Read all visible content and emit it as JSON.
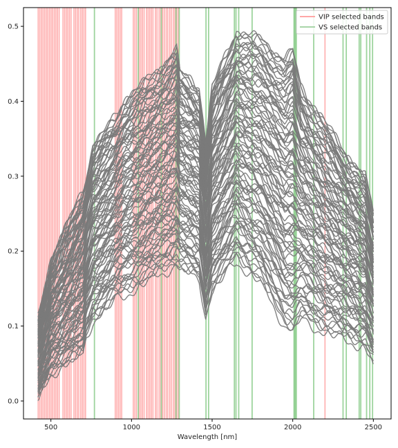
{
  "chart_data": {
    "type": "line",
    "title": "",
    "xlabel": "Wavelength [nm]",
    "ylabel": "",
    "xlim": [
      330,
      2610
    ],
    "ylim": [
      -0.024,
      0.525
    ],
    "xticks": [
      500,
      1000,
      1500,
      2000,
      2500
    ],
    "yticks": [
      0.0,
      0.1,
      0.2,
      0.3,
      0.4,
      0.5
    ],
    "grid": false,
    "legend_position": "top-right",
    "legend": [
      {
        "name": "VIP selected bands",
        "color": "#ff9a9a"
      },
      {
        "name": "VS selected bands",
        "color": "#9ccf9c"
      }
    ],
    "colors": {
      "spectra": "#7a7a7a",
      "vip": "#ff8080",
      "vs": "#8ccc8c"
    },
    "spectra_count": 100,
    "spectra_wavelength_range": [
      420,
      2500
    ],
    "spectra_envelope": {
      "x": [
        420,
        500,
        600,
        700,
        720,
        760,
        900,
        950,
        1100,
        1280,
        1300,
        1420,
        1460,
        1500,
        1650,
        1800,
        1950,
        2000,
        2050,
        2150,
        2300,
        2450,
        2500
      ],
      "lower": [
        0.002,
        0.035,
        0.05,
        0.06,
        0.085,
        0.105,
        0.133,
        0.139,
        0.158,
        0.18,
        0.175,
        0.16,
        0.112,
        0.145,
        0.185,
        0.155,
        0.098,
        0.09,
        0.107,
        0.095,
        0.082,
        0.071,
        0.05
      ],
      "upper": [
        0.11,
        0.19,
        0.235,
        0.283,
        0.3,
        0.34,
        0.38,
        0.402,
        0.43,
        0.47,
        0.44,
        0.42,
        0.345,
        0.42,
        0.495,
        0.485,
        0.458,
        0.47,
        0.42,
        0.39,
        0.34,
        0.3,
        0.25
      ]
    },
    "vip_selected_bands": [
      [
        418,
        424
      ],
      [
        428,
        434
      ],
      [
        438,
        444
      ],
      [
        448,
        454
      ],
      [
        458,
        464
      ],
      [
        468,
        474
      ],
      [
        478,
        484
      ],
      [
        488,
        494
      ],
      [
        498,
        504
      ],
      [
        508,
        514
      ],
      [
        518,
        524
      ],
      [
        528,
        534
      ],
      [
        538,
        544
      ],
      [
        548,
        554
      ],
      [
        572,
        578
      ],
      [
        582,
        588
      ],
      [
        592,
        598
      ],
      [
        602,
        608
      ],
      [
        612,
        618
      ],
      [
        622,
        628
      ],
      [
        640,
        646
      ],
      [
        650,
        656
      ],
      [
        660,
        666
      ],
      [
        670,
        676
      ],
      [
        682,
        688
      ],
      [
        692,
        698
      ],
      [
        702,
        708
      ],
      [
        712,
        718
      ],
      [
        896,
        902
      ],
      [
        906,
        912
      ],
      [
        916,
        922
      ],
      [
        926,
        932
      ],
      [
        936,
        942
      ],
      [
        1008,
        1014
      ],
      [
        1018,
        1024
      ],
      [
        1028,
        1034
      ],
      [
        1045,
        1051
      ],
      [
        1055,
        1061
      ],
      [
        1065,
        1071
      ],
      [
        1075,
        1081
      ],
      [
        1090,
        1096
      ],
      [
        1100,
        1106
      ],
      [
        1110,
        1116
      ],
      [
        1120,
        1126
      ],
      [
        1130,
        1136
      ],
      [
        1145,
        1151
      ],
      [
        1155,
        1161
      ],
      [
        1168,
        1174
      ],
      [
        1178,
        1184
      ],
      [
        1190,
        1196
      ],
      [
        1200,
        1206
      ],
      [
        1212,
        1218
      ],
      [
        1222,
        1228
      ],
      [
        1234,
        1240
      ],
      [
        1244,
        1250
      ],
      [
        1256,
        1262
      ],
      [
        1266,
        1272
      ],
      [
        1278,
        1284
      ],
      [
        1288,
        1294
      ],
      [
        2197,
        2203
      ]
    ],
    "vs_selected_bands": [
      770,
      1042,
      1185,
      1276,
      1296,
      1462,
      1478,
      1638,
      1648,
      1665,
      1748,
      2008,
      2012,
      2017,
      2022,
      2130,
      2312,
      2332,
      2412,
      2422,
      2458,
      2478,
      2495
    ]
  }
}
